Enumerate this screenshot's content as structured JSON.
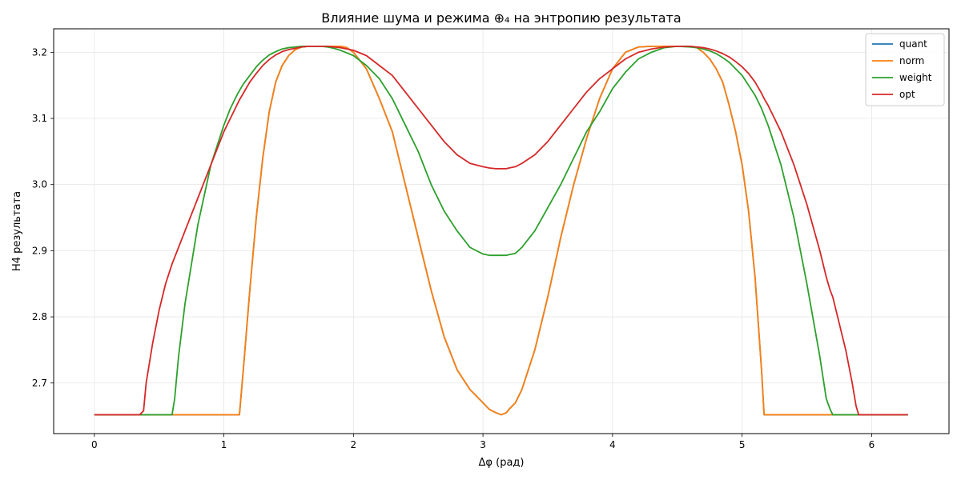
{
  "chart_data": {
    "type": "line",
    "title": "Влияние шума и режима ⊕₄ на энтропию результата",
    "xlabel": "Δφ (рад)",
    "ylabel": "H4 результата",
    "xlim": [
      -0.314,
      6.597
    ],
    "ylim": [
      2.6235,
      3.2355
    ],
    "xticks": [
      "0",
      "1",
      "2",
      "3",
      "4",
      "5",
      "6"
    ],
    "yticks": [
      "2.7",
      "2.8",
      "2.9",
      "3.0",
      "3.1",
      "3.2"
    ],
    "grid": true,
    "legend_position": "top-right",
    "colors": {
      "quant": "#1f77b4",
      "norm": "#ff7f0e",
      "weight": "#2ca02c",
      "opt": "#d62728"
    },
    "x": [
      0,
      0.1,
      0.2,
      0.3,
      0.35,
      0.38,
      0.4,
      0.45,
      0.5,
      0.55,
      0.6,
      0.62,
      0.65,
      0.7,
      0.8,
      0.9,
      1.0,
      1.05,
      1.1,
      1.12,
      1.15,
      1.2,
      1.25,
      1.3,
      1.35,
      1.4,
      1.45,
      1.5,
      1.55,
      1.6,
      1.65,
      1.7,
      1.75,
      1.8,
      1.85,
      1.9,
      1.95,
      2.0,
      2.1,
      2.2,
      2.3,
      2.4,
      2.5,
      2.6,
      2.7,
      2.8,
      2.9,
      3.0,
      3.05,
      3.1,
      3.14,
      3.18,
      3.2,
      3.25,
      3.3,
      3.4,
      3.5,
      3.6,
      3.7,
      3.8,
      3.9,
      4.0,
      4.1,
      4.2,
      4.3,
      4.4,
      4.5,
      4.6,
      4.65,
      4.7,
      4.75,
      4.8,
      4.85,
      4.9,
      4.95,
      5.0,
      5.05,
      5.1,
      5.15,
      5.17,
      5.2,
      5.3,
      5.4,
      5.5,
      5.6,
      5.65,
      5.68,
      5.7,
      5.8,
      5.85,
      5.88,
      5.9,
      5.92,
      6.0,
      6.1,
      6.2,
      6.28
    ],
    "series": [
      {
        "name": "quant",
        "values": [
          2.652,
          2.652,
          2.652,
          2.652,
          2.652,
          2.652,
          2.652,
          2.652,
          2.652,
          2.652,
          2.652,
          2.652,
          2.652,
          2.652,
          2.652,
          2.652,
          2.652,
          2.652,
          2.652,
          2.652,
          2.72,
          2.84,
          2.95,
          3.04,
          3.11,
          3.155,
          3.18,
          3.195,
          3.204,
          3.208,
          3.209,
          3.209,
          3.209,
          3.209,
          3.209,
          3.209,
          3.207,
          3.2,
          3.175,
          3.13,
          3.08,
          3.0,
          2.92,
          2.84,
          2.77,
          2.72,
          2.69,
          2.67,
          2.66,
          2.655,
          2.652,
          2.655,
          2.66,
          2.67,
          2.69,
          2.75,
          2.83,
          2.92,
          3.0,
          3.07,
          3.13,
          3.175,
          3.2,
          3.208,
          3.209,
          3.209,
          3.209,
          3.209,
          3.207,
          3.2,
          3.19,
          3.175,
          3.155,
          3.12,
          3.08,
          3.03,
          2.96,
          2.86,
          2.72,
          2.652,
          2.652,
          2.652,
          2.652,
          2.652,
          2.652,
          2.652,
          2.652,
          2.652,
          2.652,
          2.652,
          2.652,
          2.652,
          2.652,
          2.652,
          2.652,
          2.652,
          2.652
        ]
      },
      {
        "name": "norm",
        "values": [
          2.652,
          2.652,
          2.652,
          2.652,
          2.652,
          2.652,
          2.652,
          2.652,
          2.652,
          2.652,
          2.652,
          2.652,
          2.652,
          2.652,
          2.652,
          2.652,
          2.652,
          2.652,
          2.652,
          2.652,
          2.72,
          2.84,
          2.95,
          3.04,
          3.11,
          3.155,
          3.18,
          3.195,
          3.204,
          3.208,
          3.209,
          3.209,
          3.209,
          3.209,
          3.209,
          3.209,
          3.207,
          3.2,
          3.175,
          3.13,
          3.08,
          3.0,
          2.92,
          2.84,
          2.77,
          2.72,
          2.69,
          2.67,
          2.66,
          2.655,
          2.652,
          2.655,
          2.66,
          2.67,
          2.69,
          2.75,
          2.83,
          2.92,
          3.0,
          3.07,
          3.13,
          3.175,
          3.2,
          3.208,
          3.209,
          3.209,
          3.209,
          3.209,
          3.207,
          3.2,
          3.19,
          3.175,
          3.155,
          3.12,
          3.08,
          3.03,
          2.96,
          2.86,
          2.72,
          2.652,
          2.652,
          2.652,
          2.652,
          2.652,
          2.652,
          2.652,
          2.652,
          2.652,
          2.652,
          2.652,
          2.652,
          2.652,
          2.652,
          2.652,
          2.652,
          2.652,
          2.652
        ]
      },
      {
        "name": "weight",
        "values": [
          2.652,
          2.652,
          2.652,
          2.652,
          2.652,
          2.652,
          2.652,
          2.652,
          2.652,
          2.652,
          2.652,
          2.676,
          2.74,
          2.82,
          2.94,
          3.03,
          3.09,
          3.115,
          3.135,
          3.142,
          3.152,
          3.165,
          3.178,
          3.188,
          3.196,
          3.201,
          3.205,
          3.207,
          3.208,
          3.209,
          3.209,
          3.209,
          3.209,
          3.208,
          3.206,
          3.203,
          3.199,
          3.195,
          3.18,
          3.16,
          3.13,
          3.09,
          3.05,
          3.0,
          2.96,
          2.93,
          2.905,
          2.895,
          2.893,
          2.893,
          2.893,
          2.893,
          2.894,
          2.896,
          2.905,
          2.93,
          2.965,
          3.0,
          3.04,
          3.08,
          3.11,
          3.145,
          3.17,
          3.19,
          3.2,
          3.207,
          3.209,
          3.208,
          3.207,
          3.205,
          3.202,
          3.198,
          3.192,
          3.185,
          3.175,
          3.165,
          3.15,
          3.135,
          3.115,
          3.105,
          3.09,
          3.03,
          2.95,
          2.85,
          2.74,
          2.676,
          2.66,
          2.652,
          2.652,
          2.652,
          2.652,
          2.652,
          2.652,
          2.652,
          2.652,
          2.652,
          2.652
        ]
      },
      {
        "name": "opt",
        "values": [
          2.652,
          2.652,
          2.652,
          2.652,
          2.652,
          2.658,
          2.7,
          2.76,
          2.81,
          2.85,
          2.88,
          2.89,
          2.905,
          2.93,
          2.98,
          3.03,
          3.08,
          3.1,
          3.12,
          3.128,
          3.138,
          3.155,
          3.168,
          3.18,
          3.189,
          3.196,
          3.201,
          3.204,
          3.206,
          3.208,
          3.209,
          3.209,
          3.209,
          3.209,
          3.208,
          3.207,
          3.205,
          3.203,
          3.195,
          3.18,
          3.165,
          3.14,
          3.115,
          3.09,
          3.065,
          3.045,
          3.032,
          3.027,
          3.025,
          3.024,
          3.024,
          3.024,
          3.025,
          3.027,
          3.032,
          3.045,
          3.065,
          3.09,
          3.115,
          3.14,
          3.16,
          3.175,
          3.19,
          3.2,
          3.205,
          3.208,
          3.209,
          3.209,
          3.208,
          3.207,
          3.205,
          3.202,
          3.198,
          3.193,
          3.186,
          3.178,
          3.168,
          3.155,
          3.138,
          3.13,
          3.12,
          3.08,
          3.03,
          2.97,
          2.9,
          2.86,
          2.84,
          2.83,
          2.75,
          2.7,
          2.665,
          2.652,
          2.652,
          2.652,
          2.652,
          2.652,
          2.652
        ]
      }
    ]
  }
}
